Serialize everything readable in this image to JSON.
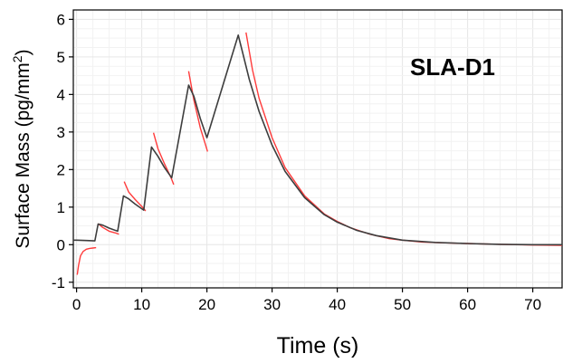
{
  "chart_data": {
    "type": "line",
    "title": "",
    "annotation": "SLA-D1",
    "xlabel": "Time (s)",
    "ylabel_main": "Surface Mass (pg/mm",
    "ylabel_sup": "2",
    "ylabel_tail": ")",
    "xlim": [
      -0.5,
      74.5
    ],
    "ylim": [
      -1.15,
      6.25
    ],
    "x_ticks": [
      0,
      10,
      20,
      30,
      40,
      50,
      60,
      70
    ],
    "y_ticks": [
      -1,
      0,
      1,
      2,
      3,
      4,
      5,
      6
    ],
    "grid": true,
    "legend": "none",
    "series": [
      {
        "role": "measured",
        "color": "#ff3b3b",
        "segments": [
          [
            [
              0.1,
              -0.8
            ],
            [
              0.3,
              -0.55
            ],
            [
              0.6,
              -0.3
            ],
            [
              1.0,
              -0.18
            ],
            [
              1.5,
              -0.12
            ],
            [
              2.0,
              -0.1
            ],
            [
              2.5,
              -0.09
            ],
            [
              3.0,
              -0.08
            ]
          ],
          [
            [
              3.3,
              0.56
            ],
            [
              4.0,
              0.46
            ],
            [
              5.0,
              0.36
            ],
            [
              6.0,
              0.31
            ],
            [
              6.5,
              0.28
            ]
          ],
          [
            [
              7.3,
              1.68
            ],
            [
              8.0,
              1.4
            ],
            [
              9.0,
              1.2
            ],
            [
              10.0,
              1.02
            ],
            [
              10.6,
              0.9
            ]
          ],
          [
            [
              11.8,
              2.98
            ],
            [
              12.5,
              2.55
            ],
            [
              13.5,
              2.15
            ],
            [
              14.5,
              1.78
            ],
            [
              14.9,
              1.6
            ]
          ],
          [
            [
              17.2,
              4.62
            ],
            [
              18.0,
              3.85
            ],
            [
              19.0,
              3.1
            ],
            [
              19.8,
              2.65
            ],
            [
              20.1,
              2.48
            ]
          ],
          [
            [
              26.0,
              5.65
            ],
            [
              27.0,
              4.65
            ],
            [
              28.0,
              3.9
            ],
            [
              30.0,
              2.85
            ],
            [
              32.0,
              2.05
            ],
            [
              35.0,
              1.3
            ],
            [
              38.0,
              0.82
            ],
            [
              40.0,
              0.62
            ],
            [
              42.0,
              0.45
            ],
            [
              45.0,
              0.28
            ],
            [
              48.0,
              0.16
            ],
            [
              50.0,
              0.12
            ],
            [
              53.0,
              0.07
            ],
            [
              56.0,
              0.05
            ],
            [
              60.0,
              0.03
            ],
            [
              65.0,
              0.01
            ],
            [
              70.0,
              -0.01
            ],
            [
              74.5,
              -0.02
            ]
          ]
        ]
      },
      {
        "role": "fit",
        "color": "#3d3d3d",
        "points": [
          [
            -0.5,
            0.12
          ],
          [
            0.0,
            0.12
          ],
          [
            1.5,
            0.11
          ],
          [
            2.8,
            0.1
          ],
          [
            3.3,
            0.55
          ],
          [
            4.0,
            0.52
          ],
          [
            5.0,
            0.44
          ],
          [
            6.3,
            0.36
          ],
          [
            7.2,
            1.3
          ],
          [
            8.0,
            1.22
          ],
          [
            9.0,
            1.08
          ],
          [
            10.3,
            0.92
          ],
          [
            11.5,
            2.6
          ],
          [
            12.5,
            2.35
          ],
          [
            13.5,
            2.05
          ],
          [
            14.6,
            1.78
          ],
          [
            17.2,
            4.25
          ],
          [
            18.0,
            3.95
          ],
          [
            19.0,
            3.35
          ],
          [
            20.0,
            2.85
          ],
          [
            24.8,
            5.58
          ],
          [
            25.5,
            5.1
          ],
          [
            26.5,
            4.4
          ],
          [
            28.0,
            3.55
          ],
          [
            30.0,
            2.65
          ],
          [
            32.0,
            1.95
          ],
          [
            35.0,
            1.25
          ],
          [
            38.0,
            0.8
          ],
          [
            40.0,
            0.6
          ],
          [
            43.0,
            0.38
          ],
          [
            46.0,
            0.24
          ],
          [
            50.0,
            0.12
          ],
          [
            55.0,
            0.06
          ],
          [
            60.0,
            0.03
          ],
          [
            65.0,
            0.01
          ],
          [
            70.0,
            0.0
          ],
          [
            74.5,
            0.0
          ]
        ]
      }
    ]
  }
}
